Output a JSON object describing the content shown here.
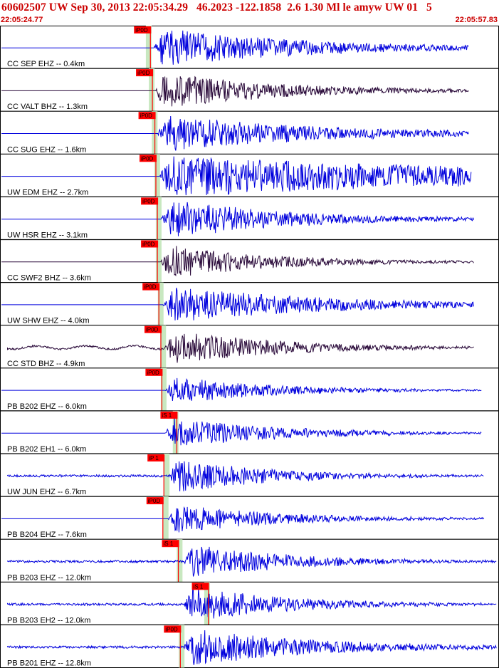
{
  "header": {
    "title": "60602507 UW Sep 30, 2013 22:05:34.29   46.2023 -122.1858  2.6 1.30 Ml le amyw UW 01   5",
    "time_start": "22:05:24.77",
    "time_end": "22:05:57.83"
  },
  "colors": {
    "header_text": "#cc0000",
    "trace_blue": "#0000dd",
    "trace_dark": "#2a0a3a",
    "pick_box": "#ff0000",
    "pick_window": "#c8e8c0",
    "frame": "#000000",
    "theoretical_curve": "#aa0000"
  },
  "traces": [
    {
      "label": "CC SEP EHZ -- 0.4km",
      "pick": "iP0D",
      "color": "blue",
      "pre": "flat",
      "amp": 30,
      "onset": 0.308,
      "pick_at": 0.27,
      "decay": 2.2,
      "end": 0.94,
      "window": 0.298
    },
    {
      "label": "CC VALT BHZ -- 1.3km",
      "pick": "iP0D",
      "color": "dark",
      "pre": "flat",
      "amp": 27,
      "onset": 0.31,
      "pick_at": 0.274,
      "decay": 2.6,
      "end": 0.94,
      "window": 0.304
    },
    {
      "label": "CC SUG EHZ -- 1.6km",
      "pick": "iP0D",
      "color": "blue",
      "pre": "flat",
      "amp": 28,
      "onset": 0.316,
      "pick_at": 0.279,
      "decay": 2.0,
      "end": 0.94,
      "window": 0.31
    },
    {
      "label": "UW EDM EHZ -- 2.7km",
      "pick": "iP0D",
      "color": "blue",
      "pre": "flat",
      "amp": 30,
      "onset": 0.32,
      "pick_at": 0.281,
      "decay": 0.8,
      "end": 0.945,
      "window": 0.315
    },
    {
      "label": "UW HSR EHZ -- 3.1km",
      "pick": "iP0D",
      "color": "blue",
      "pre": "flat",
      "amp": 30,
      "onset": 0.323,
      "pick_at": 0.284,
      "decay": 2.6,
      "end": 0.95,
      "window": 0.318
    },
    {
      "label": "CC SWF2 BHZ -- 3.6km",
      "pick": "iP0D",
      "color": "dark",
      "pre": "flat",
      "amp": 26,
      "onset": 0.322,
      "pick_at": 0.284,
      "decay": 3.0,
      "end": 0.95,
      "window": 0.318
    },
    {
      "label": "UW SHW EHZ -- 4.0km",
      "pick": "iP0D",
      "color": "blue",
      "pre": "flat",
      "amp": 28,
      "onset": 0.326,
      "pick_at": 0.287,
      "decay": 2.0,
      "end": 0.95,
      "window": 0.322
    },
    {
      "label": "CC STD BHZ -- 4.9km",
      "pick": "iP0D",
      "color": "dark",
      "pre": "wave",
      "amp": 26,
      "onset": 0.33,
      "pick_at": 0.291,
      "decay": 2.8,
      "end": 0.95,
      "window": 0.327
    },
    {
      "label": "PB B202 EHZ -- 6.0km",
      "pick": "iP0D",
      "color": "blue",
      "pre": "flat",
      "amp": 22,
      "onset": 0.331,
      "pick_at": 0.293,
      "decay": 3.2,
      "end": 0.965,
      "window": 0.328
    },
    {
      "label": "PB B202 EH1 -- 6.0km",
      "pick": "iS 1",
      "color": "blue",
      "pre": "flat",
      "amp": 24,
      "onset": 0.331,
      "pick_at": 0.323,
      "decay": 3.0,
      "end": 0.965,
      "window": 0.352
    },
    {
      "label": "UW JUN EHZ -- 6.7km",
      "pick": "iP 1",
      "color": "blue",
      "pre": "noise",
      "amp": 26,
      "onset": 0.338,
      "pick_at": 0.297,
      "decay": 3.2,
      "end": 0.97,
      "window": 0.334
    },
    {
      "label": "PB B204 EHZ -- 7.6km",
      "pick": "iP0D",
      "color": "blue",
      "pre": "flat",
      "amp": 22,
      "onset": 0.336,
      "pick_at": 0.295,
      "decay": 3.0,
      "end": 0.97,
      "window": 0.332
    },
    {
      "label": "PB B203 EHZ -- 12.0km",
      "pick": "iS 1",
      "color": "blue",
      "pre": "noise",
      "amp": 26,
      "onset": 0.368,
      "pick_at": 0.326,
      "decay": 3.0,
      "end": 0.995,
      "window": 0.36
    },
    {
      "label": "PB B203 EH2 -- 12.0km",
      "pick": "iS 1",
      "color": "blue",
      "pre": "noise",
      "amp": 26,
      "onset": 0.368,
      "pick_at": 0.386,
      "decay": 3.0,
      "end": 0.995,
      "window": 0.415
    },
    {
      "label": "PB B201 EHZ -- 12.8km",
      "pick": "iP0D",
      "color": "blue",
      "pre": "noise",
      "amp": 28,
      "onset": 0.368,
      "pick_at": 0.33,
      "decay": 2.4,
      "end": 0.995,
      "window": 0.364
    }
  ]
}
